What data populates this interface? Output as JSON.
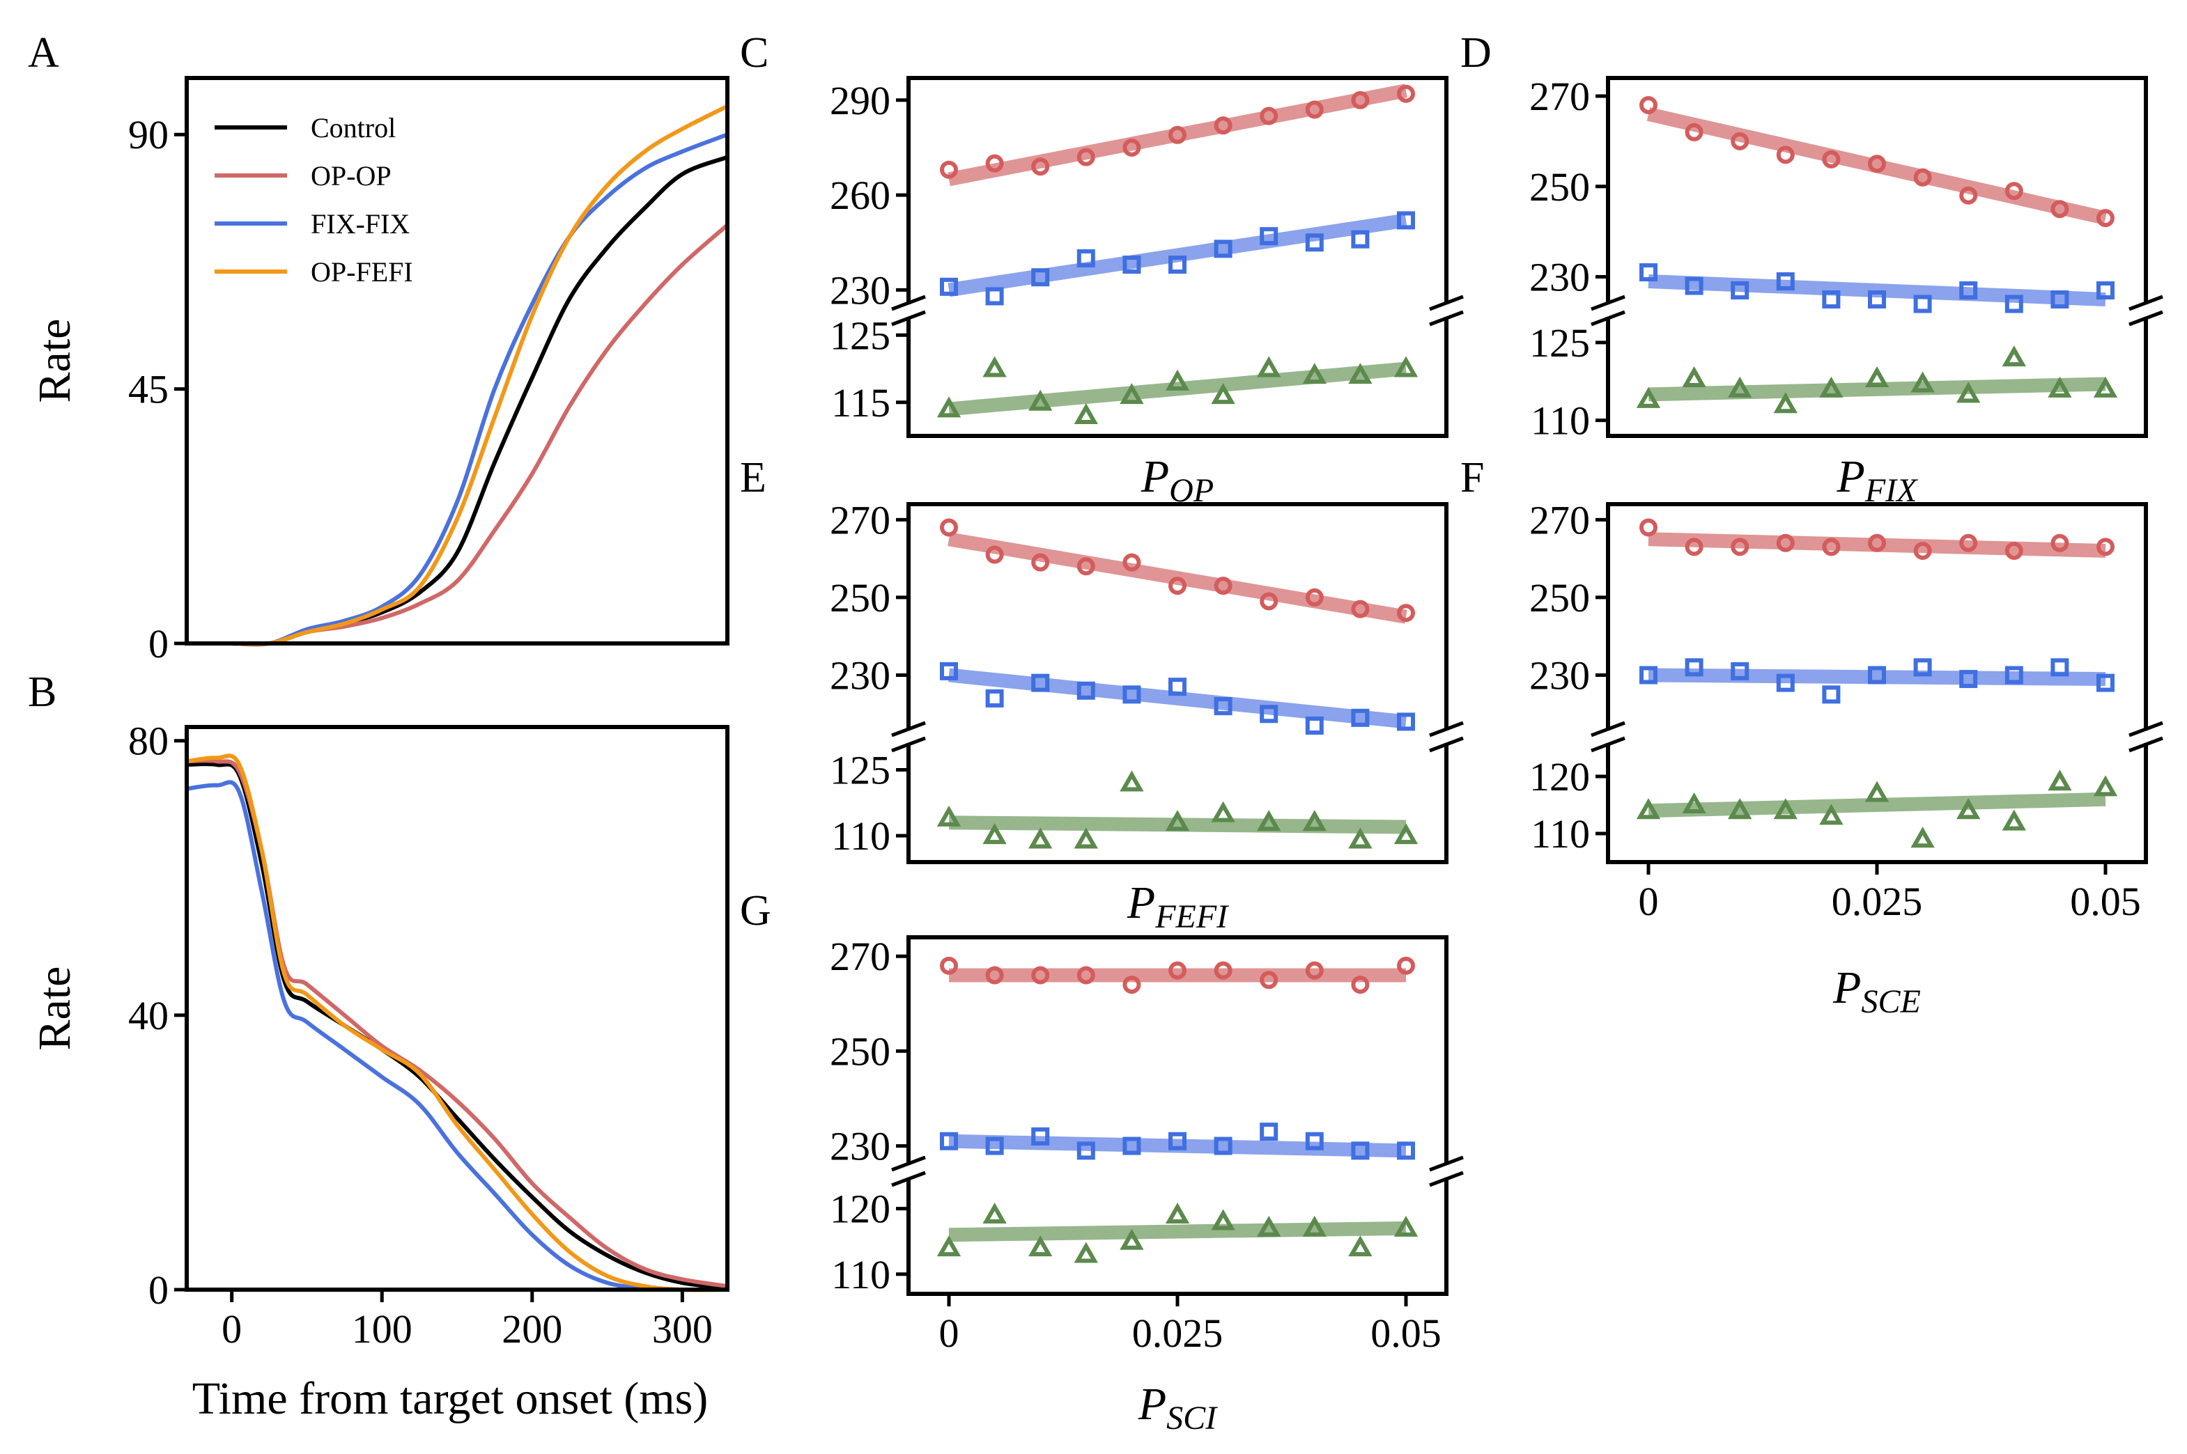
{
  "colors": {
    "Control": "#000000",
    "OP-OP": "#d06868",
    "FIX-FIX": "#4a72de",
    "OP-FEFI": "#f29818",
    "red_marker": "#d45c5c",
    "blue_marker": "#3f6fe0",
    "green_marker": "#5b8a4c",
    "red_fit": "#dc8a8a",
    "blue_fit": "#7f98ea",
    "green_fit": "#8caf80"
  },
  "chart_data": [
    {
      "id": "A",
      "type": "line",
      "panel_label": "A",
      "xlabel": "",
      "ylabel": "Rate",
      "xlim": [
        -30,
        330
      ],
      "ylim": [
        0,
        100
      ],
      "yticks": [
        0,
        45,
        90
      ],
      "ytick_labels": [
        "0",
        "45",
        "90"
      ],
      "legend": [
        "Control",
        "OP-OP",
        "FIX-FIX",
        "OP-FEFI"
      ],
      "legend_position": "top-left",
      "series": [
        {
          "name": "Control",
          "x": [
            0,
            25,
            50,
            75,
            100,
            125,
            150,
            175,
            200,
            225,
            250,
            275,
            300,
            330
          ],
          "y": [
            0,
            0,
            2,
            3.5,
            5.5,
            9,
            16,
            32,
            47,
            61,
            70,
            77,
            83,
            86
          ]
        },
        {
          "name": "OP-OP",
          "x": [
            0,
            25,
            50,
            75,
            100,
            125,
            150,
            175,
            200,
            225,
            250,
            275,
            300,
            330
          ],
          "y": [
            0,
            0,
            2,
            3,
            4.5,
            7,
            11,
            20,
            30,
            42,
            52,
            60,
            67,
            74
          ]
        },
        {
          "name": "FIX-FIX",
          "x": [
            0,
            25,
            50,
            75,
            100,
            125,
            150,
            175,
            200,
            225,
            250,
            275,
            300,
            330
          ],
          "y": [
            0,
            0,
            2.5,
            4,
            6.5,
            12,
            25,
            45,
            60,
            72,
            79,
            84,
            87,
            90
          ]
        },
        {
          "name": "OP-FEFI",
          "x": [
            0,
            25,
            50,
            75,
            100,
            125,
            150,
            175,
            200,
            225,
            250,
            275,
            300,
            330
          ],
          "y": [
            0,
            0,
            2,
            3.5,
            6,
            10,
            22,
            40,
            58,
            72,
            81,
            87,
            91,
            95
          ]
        }
      ]
    },
    {
      "id": "B",
      "type": "line",
      "panel_label": "B",
      "xlabel": "Time from target onset (ms)",
      "ylabel": "Rate",
      "xlim": [
        -30,
        330
      ],
      "ylim": [
        0,
        82
      ],
      "xticks": [
        0,
        100,
        200,
        300
      ],
      "xtick_labels": [
        "0",
        "100",
        "200",
        "300"
      ],
      "yticks": [
        0,
        40,
        80
      ],
      "ytick_labels": [
        "0",
        "40",
        "80"
      ],
      "series": [
        {
          "name": "Control",
          "x": [
            -30,
            -10,
            5,
            20,
            35,
            50,
            75,
            100,
            125,
            150,
            175,
            200,
            225,
            250,
            275,
            300,
            330
          ],
          "y": [
            76.5,
            76.5,
            75,
            62,
            45,
            42,
            38.5,
            35,
            31,
            25,
            19,
            13.5,
            8.5,
            5,
            2.5,
            1,
            0.2
          ]
        },
        {
          "name": "OP-OP",
          "x": [
            -30,
            -10,
            5,
            20,
            35,
            50,
            75,
            100,
            125,
            150,
            175,
            200,
            225,
            250,
            275,
            300,
            330
          ],
          "y": [
            77,
            77,
            75.5,
            64,
            47,
            44.5,
            40,
            35.5,
            32,
            27.5,
            22,
            15.5,
            10.5,
            6,
            3,
            1.5,
            0.5
          ]
        },
        {
          "name": "FIX-FIX",
          "x": [
            -30,
            -10,
            5,
            20,
            35,
            50,
            75,
            100,
            125,
            150,
            175,
            200,
            225,
            250,
            275,
            300,
            330
          ],
          "y": [
            73,
            73.5,
            72.5,
            58,
            42,
            39,
            35,
            31,
            27,
            20,
            14,
            8,
            3.5,
            1,
            0.2,
            0,
            0
          ]
        },
        {
          "name": "OP-FEFI",
          "x": [
            -30,
            -10,
            5,
            20,
            35,
            50,
            75,
            100,
            125,
            150,
            175,
            200,
            225,
            250,
            275,
            300,
            330
          ],
          "y": [
            77,
            77.5,
            76.5,
            64,
            46,
            43,
            38.5,
            35,
            31.5,
            24,
            17.5,
            11,
            5.5,
            2,
            0.5,
            0,
            0
          ]
        }
      ]
    },
    {
      "id": "C",
      "type": "scatter",
      "panel_label": "C",
      "xlabel_main": "P",
      "xlabel_sub": "OP",
      "x": [
        0,
        0.005,
        0.01,
        0.015,
        0.02,
        0.025,
        0.03,
        0.035,
        0.04,
        0.045,
        0.05
      ],
      "upper_ylim": [
        227,
        297
      ],
      "upper_yticks": [
        230,
        260,
        290
      ],
      "upper_ytick_labels": [
        "230",
        "260",
        "290"
      ],
      "lower_ylim": [
        110,
        127
      ],
      "lower_yticks": [
        115,
        125
      ],
      "lower_ytick_labels": [
        "115",
        "125"
      ],
      "series": [
        {
          "name": "OP-OP",
          "marker": "circle",
          "values": [
            268,
            270,
            269,
            272,
            275,
            279,
            282,
            285,
            287,
            290,
            292
          ],
          "fit": [
            265,
            293
          ]
        },
        {
          "name": "FIX-FIX",
          "marker": "square",
          "values": [
            231,
            228,
            234,
            240,
            238,
            238,
            243,
            247,
            245,
            246,
            252
          ],
          "fit": [
            230,
            252
          ]
        },
        {
          "name": "OP-FEFI",
          "marker": "triangle",
          "values": [
            114,
            120,
            115,
            113,
            116,
            118,
            116,
            120,
            119,
            119,
            120
          ],
          "fit": [
            114,
            120
          ]
        }
      ]
    },
    {
      "id": "D",
      "type": "scatter",
      "panel_label": "D",
      "xlabel_main": "P",
      "xlabel_sub": "FIX",
      "x": [
        0,
        0.005,
        0.01,
        0.015,
        0.02,
        0.025,
        0.03,
        0.035,
        0.04,
        0.045,
        0.05
      ],
      "upper_ylim": [
        225,
        274
      ],
      "upper_yticks": [
        230,
        250,
        270
      ],
      "upper_ytick_labels": [
        "230",
        "250",
        "270"
      ],
      "lower_ylim": [
        107,
        129
      ],
      "lower_yticks": [
        110,
        125
      ],
      "lower_ytick_labels": [
        "110",
        "125"
      ],
      "series": [
        {
          "name": "OP-OP",
          "marker": "circle",
          "values": [
            268,
            262,
            260,
            257,
            256,
            255,
            252,
            248,
            249,
            245,
            243
          ],
          "fit": [
            266,
            243
          ]
        },
        {
          "name": "FIX-FIX",
          "marker": "square",
          "values": [
            231,
            228,
            227,
            229,
            225,
            225,
            224,
            227,
            224,
            225,
            227
          ],
          "fit": [
            229,
            225
          ]
        },
        {
          "name": "OP-FEFI",
          "marker": "triangle",
          "values": [
            114,
            118,
            116,
            113,
            116,
            118,
            117,
            115,
            122,
            116,
            116
          ],
          "fit": [
            115,
            117
          ]
        }
      ]
    },
    {
      "id": "E",
      "type": "scatter",
      "panel_label": "E",
      "xlabel_main": "P",
      "xlabel_sub": "FEFI",
      "x": [
        0,
        0.005,
        0.01,
        0.015,
        0.02,
        0.025,
        0.03,
        0.035,
        0.04,
        0.045,
        0.05
      ],
      "upper_ylim": [
        217,
        274
      ],
      "upper_yticks": [
        230,
        250,
        270
      ],
      "upper_ytick_labels": [
        "230",
        "250",
        "270"
      ],
      "lower_ylim": [
        104,
        130
      ],
      "lower_yticks": [
        110,
        125
      ],
      "lower_ytick_labels": [
        "110",
        "125"
      ],
      "series": [
        {
          "name": "OP-OP",
          "marker": "circle",
          "values": [
            268,
            261,
            259,
            258,
            259,
            253,
            253,
            249,
            250,
            247,
            246
          ],
          "fit": [
            265,
            245
          ]
        },
        {
          "name": "FIX-FIX",
          "marker": "square",
          "values": [
            231,
            224,
            228,
            226,
            225,
            227,
            222,
            220,
            217,
            219,
            218
          ],
          "fit": [
            230,
            218
          ]
        },
        {
          "name": "OP-FEFI",
          "marker": "triangle",
          "values": [
            114,
            110,
            109,
            109,
            122,
            113,
            115,
            113,
            113,
            109,
            110
          ],
          "fit": [
            113,
            112
          ]
        }
      ]
    },
    {
      "id": "F",
      "type": "scatter",
      "panel_label": "F",
      "xlabel_main": "P",
      "xlabel_sub": "SCE",
      "x": [
        0,
        0.005,
        0.01,
        0.015,
        0.02,
        0.025,
        0.03,
        0.035,
        0.04,
        0.045,
        0.05
      ],
      "xticks": [
        0,
        0.025,
        0.05
      ],
      "xtick_labels": [
        "0",
        "0.025",
        "0.05"
      ],
      "upper_ylim": [
        217,
        274
      ],
      "upper_yticks": [
        230,
        250,
        270
      ],
      "upper_ytick_labels": [
        "230",
        "250",
        "270"
      ],
      "lower_ylim": [
        105,
        125
      ],
      "lower_yticks": [
        110,
        120
      ],
      "lower_ytick_labels": [
        "110",
        "120"
      ],
      "series": [
        {
          "name": "OP-OP",
          "marker": "circle",
          "values": [
            268,
            263,
            263,
            264,
            263,
            264,
            262,
            264,
            262,
            264,
            263
          ],
          "fit": [
            265,
            262
          ]
        },
        {
          "name": "FIX-FIX",
          "marker": "square",
          "values": [
            230,
            232,
            231,
            228,
            225,
            230,
            232,
            229,
            230,
            232,
            228
          ],
          "fit": [
            230,
            229
          ]
        },
        {
          "name": "OP-FEFI",
          "marker": "triangle",
          "values": [
            114,
            115,
            114,
            114,
            113,
            117,
            109,
            114,
            112,
            119,
            118
          ],
          "fit": [
            114,
            116
          ]
        }
      ]
    },
    {
      "id": "G",
      "type": "scatter",
      "panel_label": "G",
      "xlabel_main": "P",
      "xlabel_sub": "SCI",
      "x": [
        0,
        0.005,
        0.01,
        0.015,
        0.02,
        0.025,
        0.03,
        0.035,
        0.04,
        0.045,
        0.05
      ],
      "xticks": [
        0,
        0.025,
        0.05
      ],
      "xtick_labels": [
        "0",
        "0.025",
        "0.05"
      ],
      "upper_ylim": [
        227,
        274
      ],
      "upper_yticks": [
        230,
        250,
        270
      ],
      "upper_ytick_labels": [
        "230",
        "250",
        "270"
      ],
      "lower_ylim": [
        107,
        124
      ],
      "lower_yticks": [
        110,
        120
      ],
      "lower_ytick_labels": [
        "110",
        "120"
      ],
      "series": [
        {
          "name": "OP-OP",
          "marker": "circle",
          "values": [
            268,
            266,
            266,
            266,
            264,
            267,
            267,
            265,
            267,
            264,
            268
          ],
          "fit": [
            266,
            266
          ]
        },
        {
          "name": "FIX-FIX",
          "marker": "square",
          "values": [
            231,
            230,
            232,
            229,
            230,
            231,
            230,
            233,
            231,
            229,
            229
          ],
          "fit": [
            231,
            229
          ]
        },
        {
          "name": "OP-FEFI",
          "marker": "triangle",
          "values": [
            114,
            119,
            114,
            113,
            115,
            119,
            118,
            117,
            117,
            114,
            117
          ],
          "fit": [
            116,
            117
          ]
        }
      ]
    }
  ]
}
